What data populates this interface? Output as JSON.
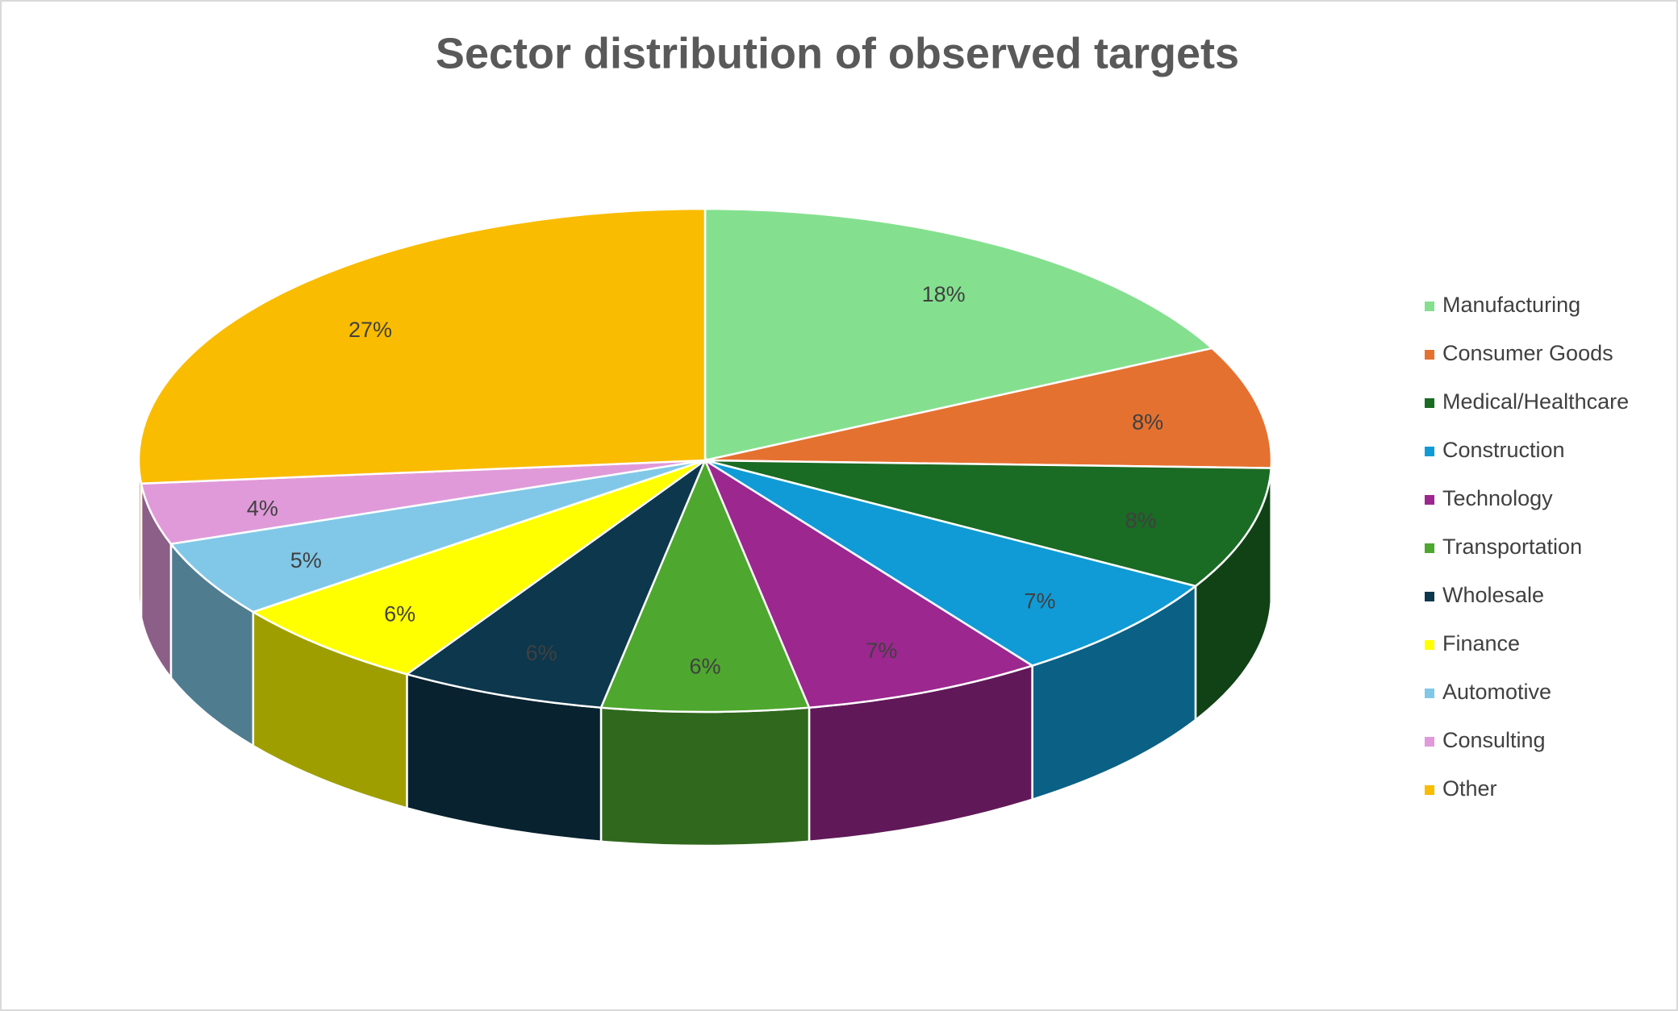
{
  "chart_data": {
    "type": "pie3d",
    "title": "Sector distribution of observed targets",
    "categories": [
      "Manufacturing",
      "Consumer Goods",
      "Medical/Healthcare",
      "Construction",
      "Technology",
      "Transportation",
      "Wholesale",
      "Finance",
      "Automotive",
      "Consulting",
      "Other"
    ],
    "values": [
      18,
      8,
      8,
      7,
      7,
      6,
      6,
      6,
      5,
      4,
      27
    ],
    "value_labels": [
      "18%",
      "8%",
      "8%",
      "7%",
      "7%",
      "6%",
      "6%",
      "6%",
      "5%",
      "4%",
      "27%"
    ],
    "colors": [
      "#84e08f",
      "#e57131",
      "#1a6b24",
      "#109bd6",
      "#9c278f",
      "#4ea72e",
      "#0d374c",
      "#ffff00",
      "#81c8e8",
      "#e09ad9",
      "#f9bc00"
    ],
    "legend": "right"
  }
}
